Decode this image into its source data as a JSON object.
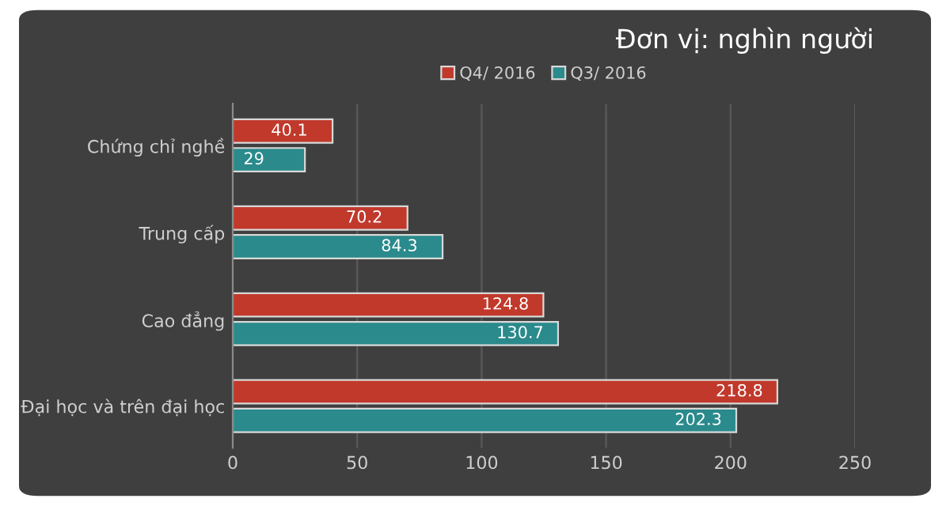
{
  "chart_data": {
    "type": "bar",
    "orientation": "horizontal",
    "title": "Đơn vị: nghìn người",
    "categories": [
      "Chứng chỉ nghề",
      "Trung cấp",
      "Cao đẳng",
      "Đại học và trên đại học"
    ],
    "series": [
      {
        "name": "Q4/ 2016",
        "color": "#c0392b",
        "values": [
          40.1,
          70.2,
          124.8,
          218.8
        ]
      },
      {
        "name": "Q3/ 2016",
        "color": "#2a8a8c",
        "values": [
          29,
          84.3,
          130.7,
          202.3
        ]
      }
    ],
    "xlim": [
      0,
      250
    ],
    "xticks": [
      0,
      50,
      100,
      150,
      200,
      250
    ],
    "grid": "x",
    "legend": "top",
    "data_labels": true
  }
}
